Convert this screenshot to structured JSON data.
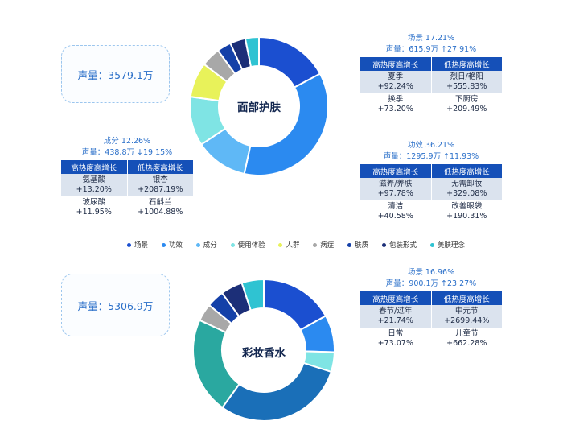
{
  "sections": [
    {
      "title": "面部护肤",
      "volume": "声量：3579.1万",
      "chart_data": {
        "type": "pie",
        "title": "面部护肤",
        "categories": [
          "场景",
          "功效",
          "成分",
          "使用体验",
          "人群",
          "病症",
          "肤质",
          "包装形式",
          "美肤理念"
        ],
        "values": [
          17.21,
          36.21,
          12.26,
          11.5,
          8.2,
          4.5,
          3.3,
          3.6,
          3.2
        ],
        "colors": [
          "#1b4fd0",
          "#2b8af0",
          "#5fb8f6",
          "#7fe4e4",
          "#e8f25a",
          "#a8a8a8",
          "#1440a8",
          "#1c2f78",
          "#2fc3d2"
        ]
      },
      "callouts": {
        "scene": {
          "line1": "场景 17.21%",
          "line2": "声量：615.9万 ↑27.91%",
          "headers": [
            "高热度高增长",
            "低热度高增长"
          ],
          "rows": [
            [
              [
                "夏季",
                "+92.24%"
              ],
              [
                "烈日/艳阳",
                "+555.83%"
              ]
            ],
            [
              [
                "换季",
                "+73.20%"
              ],
              [
                "下厨房",
                "+209.49%"
              ]
            ]
          ]
        },
        "efficacy": {
          "line1": "功效 36.21%",
          "line2": "声量：1295.9万 ↑11.93%",
          "headers": [
            "高热度高增长",
            "低热度高增长"
          ],
          "rows": [
            [
              [
                "滋养/养肤",
                "+97.78%"
              ],
              [
                "无需卸妆",
                "+329.08%"
              ]
            ],
            [
              [
                "清洁",
                "+40.58%"
              ],
              [
                "改善眼袋",
                "+190.31%"
              ]
            ]
          ]
        },
        "ingredient": {
          "line1": "成分 12.26%",
          "line2": "声量：438.8万 ↓19.15%",
          "headers": [
            "高热度高增长",
            "低热度高增长"
          ],
          "rows": [
            [
              [
                "氨基酸",
                "+13.20%"
              ],
              [
                "银杏",
                "+2087.19%"
              ]
            ],
            [
              [
                "玻尿酸",
                "+11.95%"
              ],
              [
                "石斛兰",
                "+1004.88%"
              ]
            ]
          ]
        }
      },
      "legend": [
        "场景",
        "功效",
        "成分",
        "使用体验",
        "人群",
        "病症",
        "肤质",
        "包装形式",
        "美肤理念"
      ]
    },
    {
      "title": "彩妆香水",
      "volume": "声量：5306.9万",
      "chart_data": {
        "type": "pie",
        "title": "彩妆香水",
        "categories": [
          "场景",
          "功效",
          "成分",
          "使用体验",
          "人群",
          "病症",
          "肤质",
          "包装形式",
          "美肤理念"
        ],
        "values": [
          16.96,
          8.5,
          4.5,
          30.0,
          22.0,
          4.0,
          4.0,
          5.0,
          5.04
        ],
        "colors": [
          "#1b4fd0",
          "#2b8af0",
          "#7fe4e4",
          "#1a6fb8",
          "#2aa8a0",
          "#a8a8a8",
          "#1440a8",
          "#1c2f78",
          "#2fc3d2"
        ]
      },
      "callouts": {
        "scene": {
          "line1": "场景 16.96%",
          "line2": "声量：900.1万 ↑23.27%",
          "headers": [
            "高热度高增长",
            "低热度高增长"
          ],
          "rows": [
            [
              [
                "春节/过年",
                "+21.74%"
              ],
              [
                "中元节",
                "+2699.44%"
              ]
            ],
            [
              [
                "日常",
                "+73.07%"
              ],
              [
                "儿童节",
                "+662.28%"
              ]
            ]
          ]
        }
      }
    }
  ]
}
